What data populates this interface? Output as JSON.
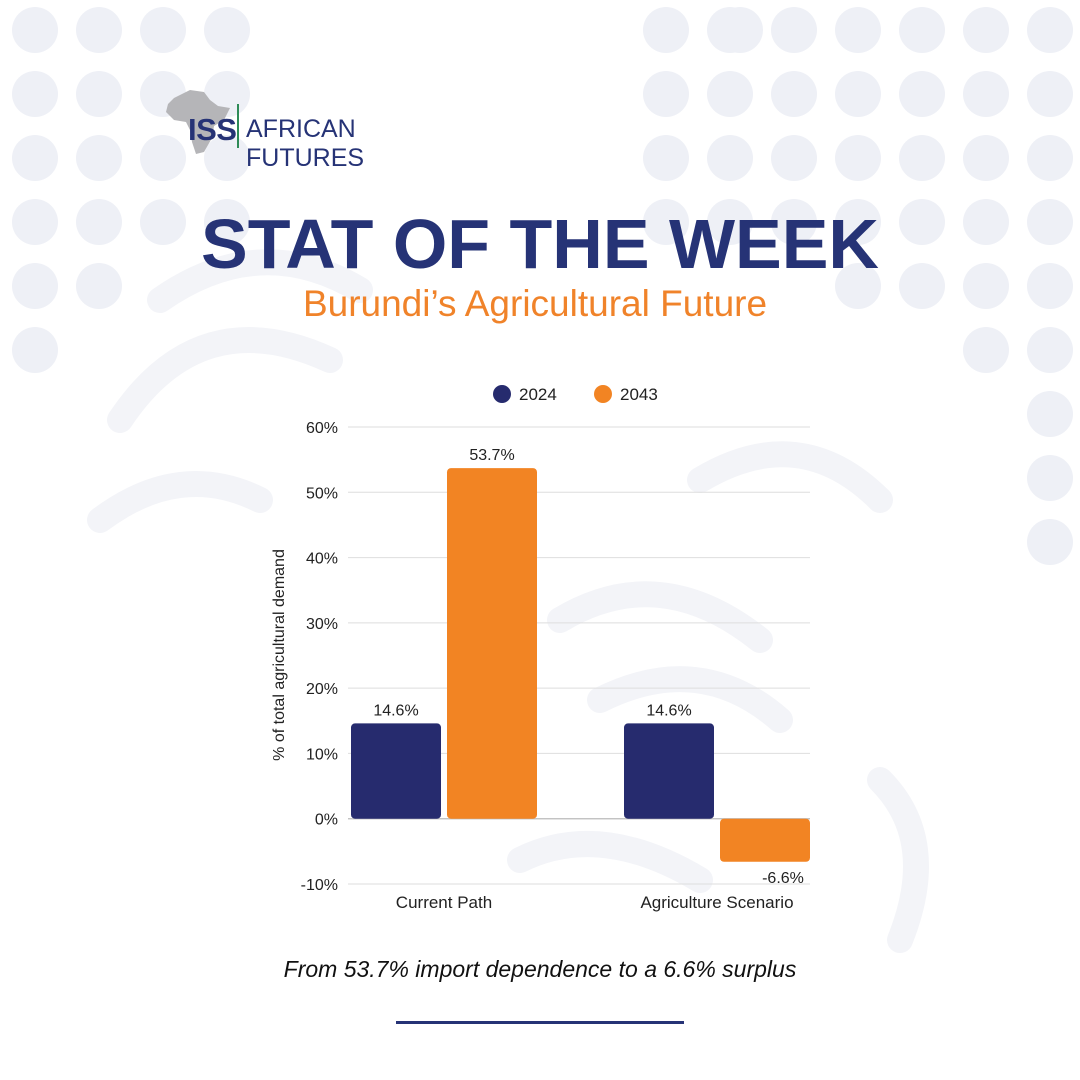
{
  "brand": {
    "iss": "ISS",
    "name": "AFRICAN FUTURES"
  },
  "title": "STAT OF THE WEEK",
  "subtitle": "Burundi’s Agricultural Future",
  "caption": "From 53.7% import dependence to a 6.6% surplus",
  "colors": {
    "navy": "#262b6e",
    "orange": "#f28423",
    "grid": "#dedede",
    "background_pattern": "#eef0f6"
  },
  "chart_data": {
    "type": "bar",
    "categories": [
      "Current Path",
      "Agriculture Scenario"
    ],
    "series": [
      {
        "name": "2024",
        "values": [
          14.6,
          14.6
        ],
        "labels": [
          "14.6%",
          "14.6%"
        ],
        "color": "#262b6e"
      },
      {
        "name": "2043",
        "values": [
          53.7,
          -6.6
        ],
        "labels": [
          "53.7%",
          "-6.6%"
        ],
        "color": "#f28423"
      }
    ],
    "ylabel": "% of total agricultural demand",
    "xlabel": "",
    "ylim": [
      -10,
      60
    ],
    "yticks": [
      -10,
      0,
      10,
      20,
      30,
      40,
      50,
      60
    ],
    "ytick_labels": [
      "-10%",
      "0%",
      "10%",
      "20%",
      "30%",
      "40%",
      "50%",
      "60%"
    ],
    "legend_position": "top",
    "grid": true
  }
}
